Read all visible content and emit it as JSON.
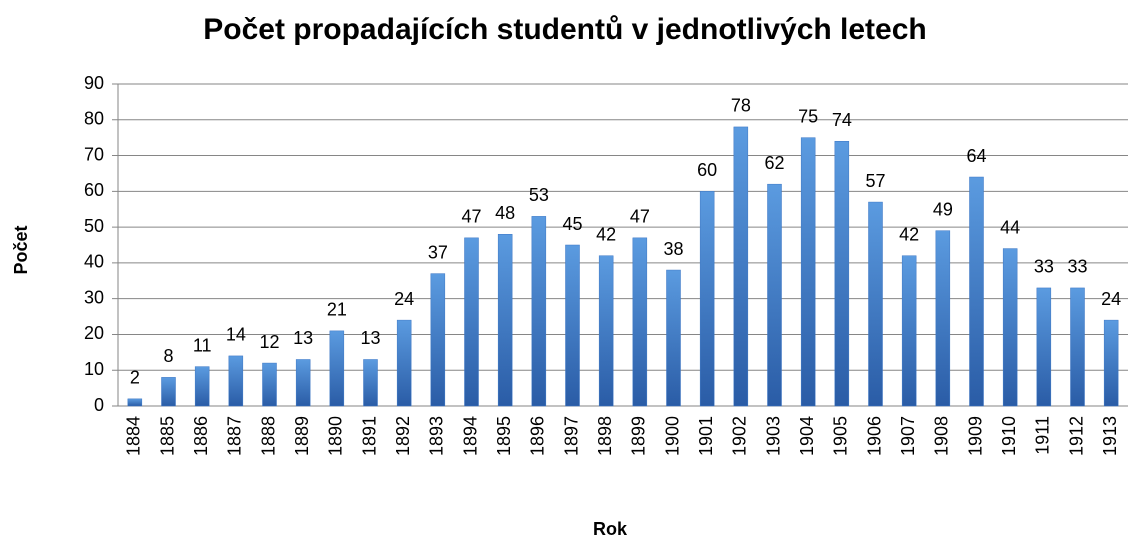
{
  "chart_data": {
    "type": "bar",
    "title": "Počet propadajících studentů v jednotlivých letech",
    "x_label": "Rok",
    "y_label": "Počet",
    "categories": [
      "1884",
      "1885",
      "1886",
      "1887",
      "1888",
      "1889",
      "1890",
      "1891",
      "1892",
      "1893",
      "1894",
      "1895",
      "1896",
      "1897",
      "1898",
      "1899",
      "1900",
      "1901",
      "1902",
      "1903",
      "1904",
      "1905",
      "1906",
      "1907",
      "1908",
      "1909",
      "1910",
      "1911",
      "1912",
      "1913"
    ],
    "values": [
      2,
      8,
      11,
      14,
      12,
      13,
      21,
      13,
      24,
      37,
      47,
      48,
      53,
      45,
      42,
      47,
      38,
      60,
      78,
      62,
      75,
      74,
      57,
      42,
      49,
      64,
      44,
      33,
      33,
      24
    ],
    "color": "#3a75c4",
    "ylim": [
      0,
      90
    ],
    "yticks": [
      0,
      10,
      20,
      30,
      40,
      50,
      60,
      70,
      80,
      90
    ],
    "grid": true
  }
}
